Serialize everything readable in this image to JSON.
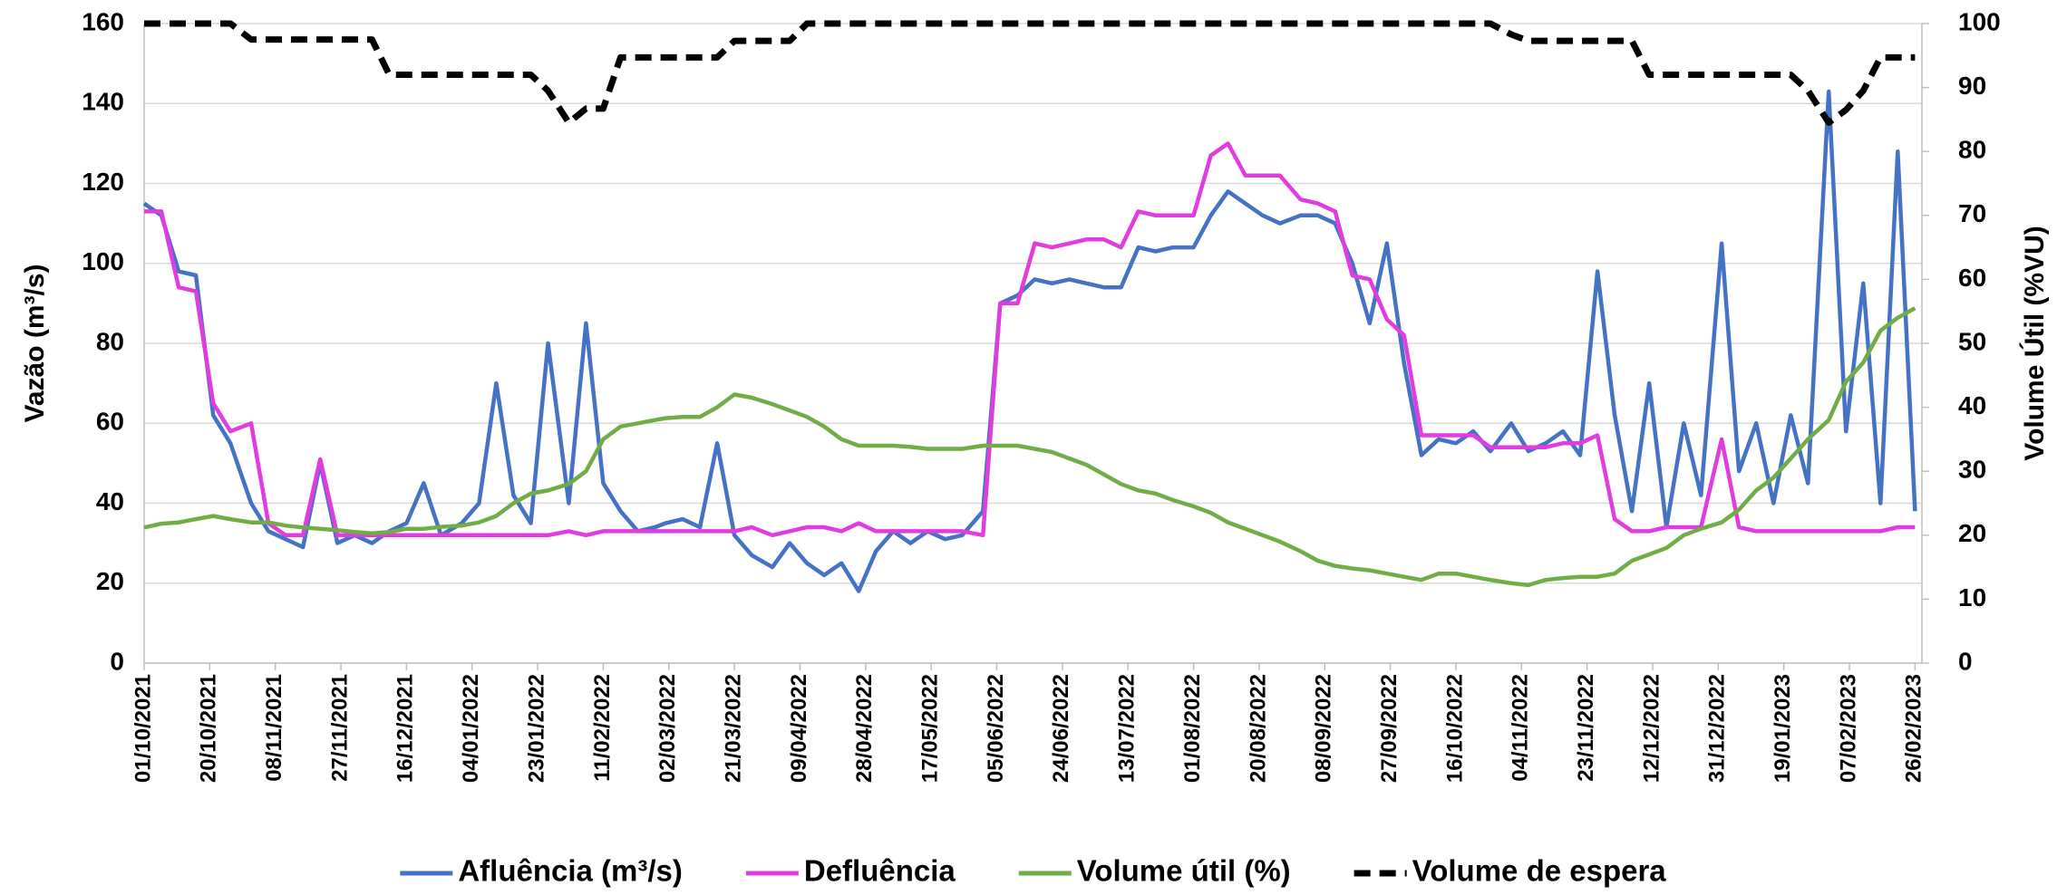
{
  "chart_data": {
    "type": "line",
    "y_label": "Vazão (m³/s)",
    "y2_label": "Volume Útil (%VU)",
    "xlim": [
      "01/10/2021",
      "28/02/2023"
    ],
    "xticks": [
      "01/10/2021",
      "20/10/2021",
      "08/11/2021",
      "27/11/2021",
      "16/12/2021",
      "04/01/2022",
      "23/01/2022",
      "11/02/2022",
      "02/03/2022",
      "21/03/2022",
      "09/04/2022",
      "28/04/2022",
      "17/05/2022",
      "05/06/2022",
      "24/06/2022",
      "13/07/2022",
      "01/08/2022",
      "20/08/2022",
      "08/09/2022",
      "27/09/2022",
      "16/10/2022",
      "04/11/2022",
      "23/11/2022",
      "12/12/2022",
      "31/12/2022",
      "19/01/2023",
      "07/02/2023",
      "26/02/2023"
    ],
    "ylim": [
      0,
      160
    ],
    "yticks": [
      0,
      20,
      40,
      60,
      80,
      100,
      120,
      140,
      160
    ],
    "y2lim": [
      0,
      100
    ],
    "y2ticks": [
      0,
      10,
      20,
      30,
      40,
      50,
      60,
      70,
      80,
      90,
      100
    ],
    "grid": true,
    "legend": "bottom",
    "x": [
      "01/10/2021",
      "06/10/2021",
      "11/10/2021",
      "16/10/2021",
      "21/10/2021",
      "26/10/2021",
      "01/11/2021",
      "06/11/2021",
      "11/11/2021",
      "16/11/2021",
      "21/11/2021",
      "26/11/2021",
      "01/12/2021",
      "06/12/2021",
      "11/12/2021",
      "16/12/2021",
      "21/12/2021",
      "26/12/2021",
      "01/01/2022",
      "06/01/2022",
      "11/01/2022",
      "16/01/2022",
      "21/01/2022",
      "26/01/2022",
      "01/02/2022",
      "06/02/2022",
      "11/02/2022",
      "16/02/2022",
      "21/02/2022",
      "26/02/2022",
      "01/03/2022",
      "06/03/2022",
      "11/03/2022",
      "16/03/2022",
      "21/03/2022",
      "26/03/2022",
      "01/04/2022",
      "06/04/2022",
      "11/04/2022",
      "16/04/2022",
      "21/04/2022",
      "26/04/2022",
      "01/05/2022",
      "06/05/2022",
      "11/05/2022",
      "16/05/2022",
      "21/05/2022",
      "26/05/2022",
      "01/06/2022",
      "06/06/2022",
      "11/06/2022",
      "16/06/2022",
      "21/06/2022",
      "26/06/2022",
      "01/07/2022",
      "06/07/2022",
      "11/07/2022",
      "16/07/2022",
      "21/07/2022",
      "26/07/2022",
      "01/08/2022",
      "06/08/2022",
      "11/08/2022",
      "16/08/2022",
      "21/08/2022",
      "26/08/2022",
      "01/09/2022",
      "06/09/2022",
      "11/09/2022",
      "16/09/2022",
      "21/09/2022",
      "26/09/2022",
      "01/10/2022",
      "06/10/2022",
      "11/10/2022",
      "16/10/2022",
      "21/10/2022",
      "26/10/2022",
      "01/11/2022",
      "06/11/2022",
      "11/11/2022",
      "16/11/2022",
      "21/11/2022",
      "26/11/2022",
      "01/12/2022",
      "06/12/2022",
      "11/12/2022",
      "16/12/2022",
      "21/12/2022",
      "26/12/2022",
      "01/01/2023",
      "06/01/2023",
      "11/01/2023",
      "16/01/2023",
      "21/01/2023",
      "26/01/2023",
      "01/02/2023",
      "06/02/2023",
      "11/02/2023",
      "16/02/2023",
      "21/02/2023",
      "26/02/2023"
    ],
    "series": [
      {
        "name": "Afluência (m³/s)",
        "color": "#4472c4",
        "values": [
          115,
          112,
          98,
          97,
          62,
          55,
          40,
          33,
          31,
          29,
          50,
          30,
          32,
          30,
          33,
          35,
          45,
          32,
          35,
          40,
          70,
          42,
          35,
          80,
          40,
          85,
          45,
          38,
          33,
          34,
          35,
          36,
          34,
          55,
          32,
          27,
          24,
          30,
          25,
          22,
          25,
          18,
          28,
          33,
          30,
          33,
          31,
          32,
          38,
          90,
          92,
          96,
          95,
          96,
          95,
          94,
          94,
          104,
          103,
          104,
          104,
          112,
          118,
          115,
          112,
          110,
          112,
          112,
          110,
          100,
          85,
          105,
          75,
          52,
          56,
          55,
          58,
          53,
          60,
          53,
          55,
          58,
          52,
          98,
          62,
          38,
          70,
          34,
          60,
          42,
          105,
          48,
          60,
          40,
          62,
          45,
          143,
          58,
          95,
          40,
          128,
          38
        ]
      },
      {
        "name": "Defluência",
        "color": "#e03ce0",
        "values": [
          113,
          113,
          94,
          93,
          65,
          58,
          60,
          35,
          32,
          32,
          51,
          32,
          32,
          32,
          32,
          32,
          32,
          32,
          32,
          32,
          32,
          32,
          32,
          32,
          33,
          32,
          33,
          33,
          33,
          33,
          33,
          33,
          33,
          33,
          33,
          34,
          32,
          33,
          34,
          34,
          33,
          35,
          33,
          33,
          33,
          33,
          33,
          33,
          32,
          90,
          90,
          105,
          104,
          105,
          106,
          106,
          104,
          113,
          112,
          112,
          112,
          127,
          130,
          122,
          122,
          122,
          116,
          115,
          113,
          97,
          96,
          86,
          82,
          57,
          57,
          57,
          57,
          54,
          54,
          54,
          54,
          55,
          55,
          57,
          36,
          33,
          33,
          34,
          34,
          34,
          56,
          34,
          33,
          33,
          33,
          33,
          33,
          33,
          33,
          33,
          34,
          34
        ]
      },
      {
        "name": "Volume útil (%)",
        "color": "#70ad47",
        "axis": "y2",
        "values": [
          21.2,
          21.8,
          22,
          22.5,
          23,
          22.5,
          22,
          22,
          21.5,
          21.2,
          21,
          20.8,
          20.5,
          20.3,
          20.5,
          21,
          21,
          21.3,
          21.5,
          22,
          23,
          25,
          26.5,
          27,
          28,
          30,
          35,
          37,
          37.5,
          38,
          38.3,
          38.5,
          38.5,
          40,
          42,
          41.5,
          40.5,
          39.5,
          38.5,
          37,
          35,
          34,
          34,
          34,
          33.8,
          33.5,
          33.5,
          33.5,
          34,
          34,
          34,
          33.5,
          33,
          32,
          31,
          29.5,
          28,
          27,
          26.5,
          25.5,
          24.5,
          23.5,
          22,
          21,
          20,
          19,
          17.5,
          16,
          15.2,
          14.8,
          14.5,
          14,
          13.5,
          13,
          14,
          14,
          13.5,
          13,
          12.5,
          12.2,
          13,
          13.3,
          13.5,
          13.5,
          14,
          16,
          17,
          18,
          20,
          21,
          22,
          24,
          27,
          29,
          32,
          35,
          38,
          44,
          47,
          52,
          54,
          55.5
        ]
      },
      {
        "name": "Volume de espera",
        "color": "#000000",
        "axis": "y2",
        "dash": true,
        "values": [
          100,
          100,
          100,
          100,
          100,
          100,
          97.5,
          97.5,
          97.5,
          97.5,
          97.5,
          97.5,
          97.5,
          97.5,
          92,
          92,
          92,
          92,
          92,
          92,
          92,
          92,
          92,
          89.5,
          84.5,
          86.7,
          86.7,
          94.7,
          94.7,
          94.7,
          94.7,
          94.7,
          94.7,
          94.7,
          97.3,
          97.3,
          97.3,
          97.3,
          100,
          100,
          100,
          100,
          100,
          100,
          100,
          100,
          100,
          100,
          100,
          100,
          100,
          100,
          100,
          100,
          100,
          100,
          100,
          100,
          100,
          100,
          100,
          100,
          100,
          100,
          100,
          100,
          100,
          100,
          100,
          100,
          100,
          100,
          100,
          100,
          100,
          100,
          100,
          100,
          98.3,
          97.3,
          97.3,
          97.3,
          97.3,
          97.3,
          97.3,
          97.3,
          92,
          92,
          92,
          92,
          92,
          92,
          92,
          92,
          92,
          89.5,
          84.5,
          86.5,
          89.5,
          94.7,
          94.7,
          94.7
        ]
      }
    ]
  }
}
